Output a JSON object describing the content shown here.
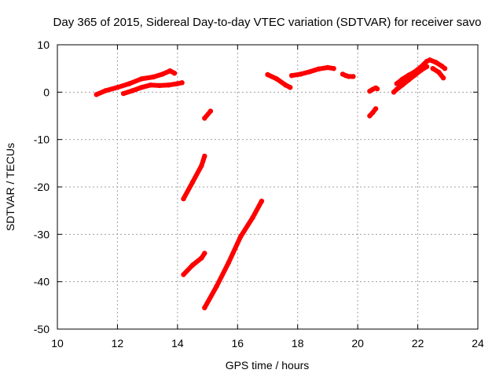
{
  "chart_data": {
    "type": "line",
    "title": "Day 365 of 2015, Sidereal Day-to-day VTEC variation (SDTVAR) for receiver savo",
    "xlabel": "GPS time / hours",
    "ylabel": "SDTVAR / TECUs",
    "xlim": [
      10,
      24
    ],
    "ylim": [
      -50,
      10
    ],
    "xticks": [
      "10",
      "12",
      "14",
      "16",
      "18",
      "20",
      "22",
      "24"
    ],
    "yticks": [
      "10",
      "0",
      "-10",
      "-20",
      "-30",
      "-40",
      "-50"
    ],
    "grid": true,
    "legend": "none",
    "color": "#ff0000",
    "series": [
      {
        "x": [
          11.3,
          11.6,
          12.0,
          12.4,
          12.8,
          13.2,
          13.5,
          13.75,
          13.9
        ],
        "y": [
          -0.5,
          0.3,
          1.0,
          1.8,
          2.8,
          3.2,
          3.8,
          4.5,
          4.0
        ]
      },
      {
        "x": [
          12.2,
          12.5,
          12.8,
          13.1,
          13.4,
          13.7,
          14.0,
          14.15
        ],
        "y": [
          -0.3,
          0.3,
          1.0,
          1.5,
          1.4,
          1.5,
          1.8,
          2.0
        ]
      },
      {
        "x": [
          14.2,
          14.5,
          14.8,
          14.9
        ],
        "y": [
          -22.5,
          -19.0,
          -15.5,
          -13.5
        ]
      },
      {
        "x": [
          14.2,
          14.5,
          14.8,
          14.9
        ],
        "y": [
          -38.5,
          -36.5,
          -35.0,
          -34.0
        ]
      },
      {
        "x": [
          14.9,
          15.1
        ],
        "y": [
          -5.5,
          -4.0
        ]
      },
      {
        "x": [
          14.9,
          15.3,
          15.7,
          16.1,
          16.5,
          16.8
        ],
        "y": [
          -45.5,
          -41.0,
          -36.0,
          -30.5,
          -26.5,
          -23.0
        ]
      },
      {
        "x": [
          17.0,
          17.3,
          17.6,
          17.75
        ],
        "y": [
          3.7,
          2.8,
          1.5,
          1.0
        ]
      },
      {
        "x": [
          17.8,
          18.1,
          18.4,
          18.7,
          19.0,
          19.2
        ],
        "y": [
          3.5,
          3.8,
          4.3,
          4.9,
          5.2,
          5.0
        ]
      },
      {
        "x": [
          19.5,
          19.6,
          19.7,
          19.85
        ],
        "y": [
          3.8,
          3.5,
          3.3,
          3.3
        ]
      },
      {
        "x": [
          20.4,
          20.5,
          20.6,
          20.65
        ],
        "y": [
          0.2,
          0.6,
          0.9,
          0.7
        ]
      },
      {
        "x": [
          20.4,
          20.5,
          20.6
        ],
        "y": [
          -5.0,
          -4.3,
          -3.5
        ]
      },
      {
        "x": [
          21.2,
          21.3,
          21.5,
          21.7,
          21.9,
          22.1,
          22.3
        ],
        "y": [
          0.0,
          0.6,
          1.6,
          2.6,
          3.6,
          4.6,
          5.4
        ]
      },
      {
        "x": [
          21.3,
          21.5,
          21.7,
          21.9,
          22.1,
          22.3,
          22.4,
          22.6,
          22.8,
          22.9
        ],
        "y": [
          1.8,
          2.8,
          3.6,
          4.3,
          5.3,
          6.5,
          6.8,
          6.3,
          5.5,
          5.0
        ]
      },
      {
        "x": [
          22.5,
          22.7,
          22.85
        ],
        "y": [
          5.0,
          4.2,
          3.0
        ]
      }
    ]
  }
}
